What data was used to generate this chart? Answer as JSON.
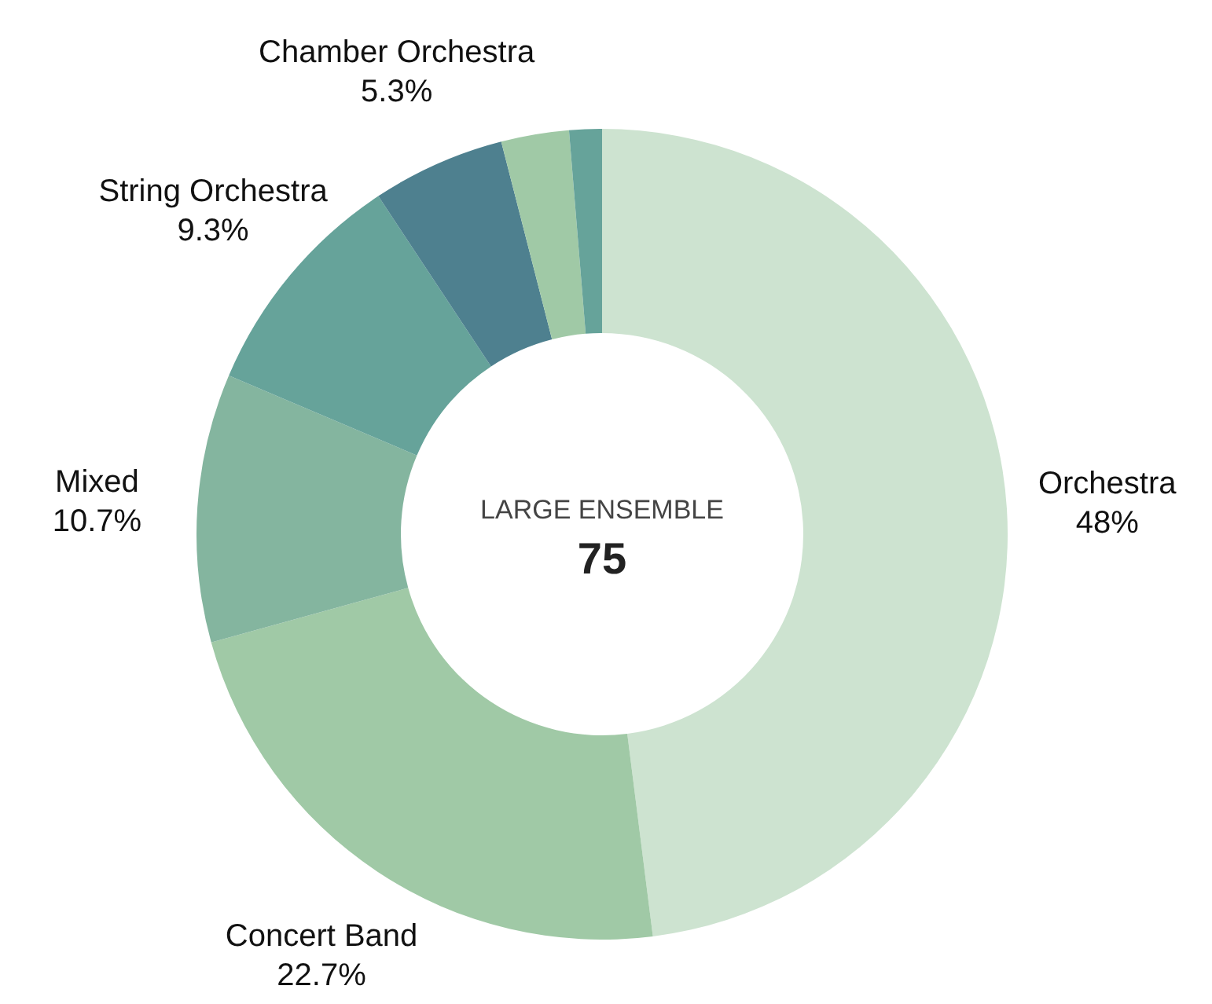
{
  "chart_data": {
    "type": "donut",
    "categories": [
      "Orchestra",
      "Concert Band",
      "Mixed",
      "String Orchestra",
      "Chamber Orchestra",
      null,
      null
    ],
    "values": [
      48,
      22.7,
      10.7,
      9.3,
      5.3,
      2.7,
      1.3
    ],
    "value_labels": [
      "48%",
      "22.7%",
      "10.7%",
      "9.3%",
      "5.3%",
      null,
      null
    ],
    "colors": [
      "#cde3d0",
      "#a0c9a6",
      "#84b59f",
      "#66a39a",
      "#4e808f",
      "#a0c9a6",
      "#66a39a"
    ],
    "annotations": [
      "LARGE ENSEMBLE",
      "75"
    ]
  }
}
